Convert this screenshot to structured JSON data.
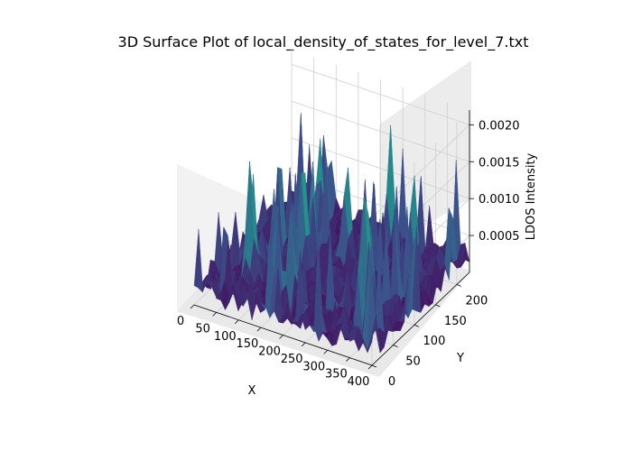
{
  "chart_data": {
    "type": "surface3d",
    "title": "3D Surface Plot of local_density_of_states_for_level_7.txt",
    "xlabel": "X",
    "ylabel": "Y",
    "zlabel": "LDOS Intensity",
    "xlim": [
      0,
      400
    ],
    "ylim": [
      0,
      230
    ],
    "zlim": [
      0,
      0.0022
    ],
    "xticks": [
      "0",
      "50",
      "100",
      "150",
      "200",
      "250",
      "300",
      "350",
      "400"
    ],
    "yticks": [
      "0",
      "50",
      "100",
      "150",
      "200"
    ],
    "zticks": [
      "0.0005",
      "0.0010",
      "0.0015",
      "0.0020"
    ],
    "colormap": [
      "#440154",
      "#3b528b",
      "#21918c",
      "#5ec962",
      "#fde725"
    ],
    "grid": true,
    "z_peak": 0.0021
  }
}
